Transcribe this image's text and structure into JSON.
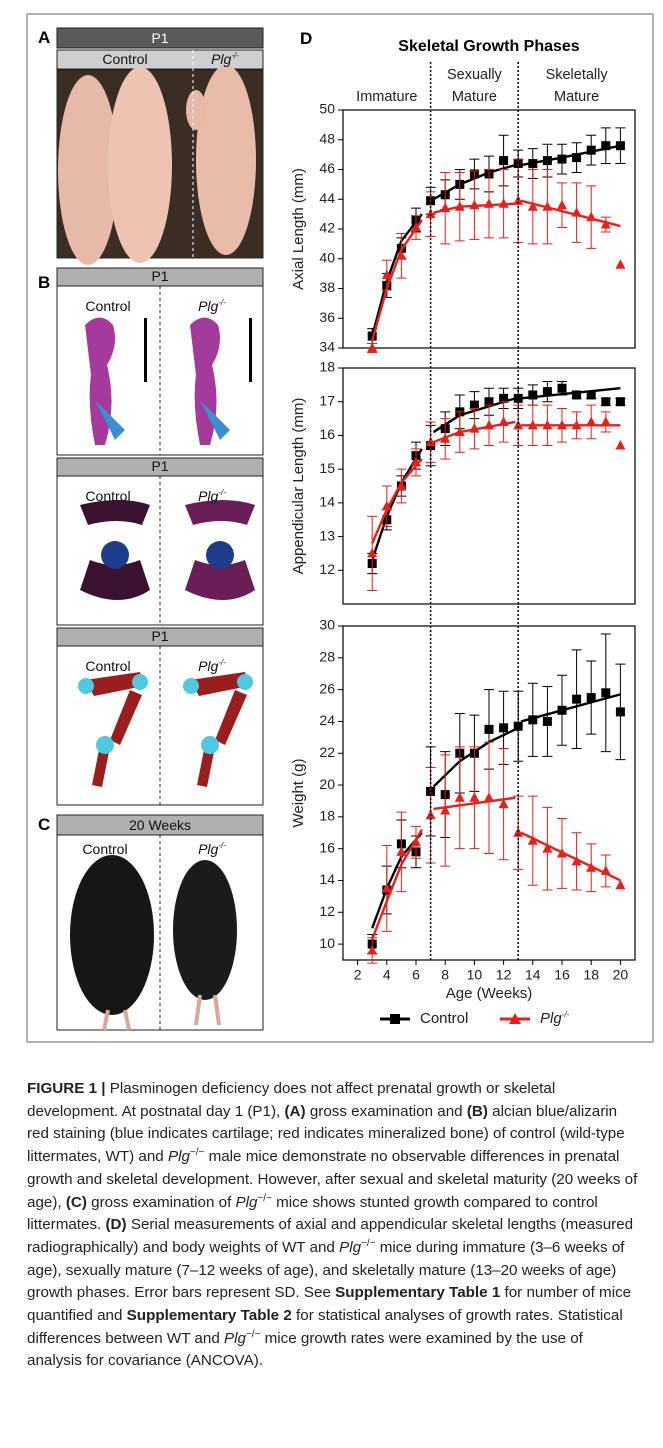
{
  "panels": {
    "A": {
      "label": "A",
      "header": "P1",
      "columns": [
        "Control",
        "Plg"
      ],
      "sup": "-/-"
    },
    "B": {
      "label": "B",
      "boxes": [
        {
          "header": "P1",
          "columns": [
            "Control",
            "Plg"
          ],
          "sup": "-/-"
        },
        {
          "header": "P1",
          "columns": [
            "Control",
            "Plg"
          ],
          "sup": "-/-"
        },
        {
          "header": "P1",
          "columns": [
            "Control",
            "Plg"
          ],
          "sup": "-/-"
        }
      ]
    },
    "C": {
      "label": "C",
      "header": "20 Weeks",
      "columns": [
        "Control",
        "Plg"
      ],
      "sup": "-/-"
    }
  },
  "panel_d": {
    "label": "D",
    "title": "Skeletal Growth Phases",
    "phases": [
      [
        "Immature"
      ],
      [
        "Sexually",
        "Mature"
      ],
      [
        "Skeletally",
        "Mature"
      ]
    ],
    "phase_boundaries": [
      7,
      13
    ]
  },
  "chart_data": [
    {
      "type": "scatter",
      "ylabel": "Axial Length (mm)",
      "xlim": [
        1,
        21
      ],
      "ylim": [
        34,
        50
      ],
      "yticks": [
        34,
        36,
        38,
        40,
        42,
        44,
        46,
        48,
        50
      ],
      "x": [
        3,
        4,
        5,
        6,
        7,
        8,
        9,
        10,
        11,
        12,
        13,
        14,
        15,
        16,
        17,
        18,
        19,
        20
      ],
      "series": [
        {
          "name": "Control",
          "color": "#000000",
          "marker": "square",
          "values": [
            34.8,
            38.2,
            40.7,
            42.6,
            43.9,
            44.3,
            45.0,
            45.7,
            45.7,
            46.6,
            46.4,
            46.4,
            46.6,
            46.7,
            46.8,
            47.3,
            47.6,
            47.6
          ],
          "errors": [
            0.5,
            0.8,
            0.7,
            0.8,
            0.9,
            1.0,
            1.0,
            1.0,
            1.2,
            1.7,
            0.9,
            1.0,
            1.1,
            1.0,
            1.0,
            1.0,
            1.2,
            1.2
          ],
          "fit": [
            {
              "x": [
                3,
                4,
                5,
                6.4
              ],
              "values": [
                34.8,
                38.5,
                41.2,
                43.0
              ]
            },
            {
              "x": [
                7.2,
                9,
                11,
                12.8
              ],
              "values": [
                44.0,
                45.0,
                45.8,
                46.3
              ]
            },
            {
              "x": [
                13.2,
                16,
                20
              ],
              "values": [
                46.3,
                46.8,
                47.6
              ]
            }
          ]
        },
        {
          "name": "Plg",
          "name_sup": "-/-",
          "color": "#e8201c",
          "marker": "triangle",
          "values": [
            34.0,
            38.9,
            40.2,
            42.1,
            43.0,
            43.4,
            43.5,
            43.6,
            43.7,
            43.7,
            43.9,
            43.5,
            43.5,
            43.6,
            43.1,
            42.8,
            42.3,
            39.6
          ],
          "errors": [
            0.3,
            1.0,
            1.5,
            0.8,
            1.5,
            2.4,
            2.3,
            2.3,
            2.3,
            2.3,
            2.8,
            2.5,
            2.5,
            1.5,
            2.0,
            2.1,
            0.5,
            null
          ],
          "fit": [
            {
              "x": [
                3,
                4,
                5,
                6.4
              ],
              "values": [
                34.5,
                38.0,
                40.6,
                42.6
              ]
            },
            {
              "x": [
                7.2,
                9,
                12.8
              ],
              "values": [
                43.1,
                43.5,
                43.7
              ]
            },
            {
              "x": [
                13.2,
                20
              ],
              "values": [
                43.9,
                42.2
              ]
            }
          ]
        }
      ]
    },
    {
      "type": "scatter",
      "ylabel": "Appendicular Length (mm)",
      "xlim": [
        1,
        21
      ],
      "ylim": [
        11,
        18
      ],
      "yticks": [
        12,
        13,
        14,
        15,
        16,
        17,
        18
      ],
      "x": [
        3,
        4,
        5,
        6,
        7,
        8,
        9,
        10,
        11,
        12,
        13,
        14,
        15,
        16,
        17,
        18,
        19,
        20
      ],
      "series": [
        {
          "color": "#000000",
          "marker": "square",
          "values": [
            12.2,
            13.5,
            14.5,
            15.4,
            15.7,
            16.2,
            16.7,
            16.9,
            17.0,
            17.1,
            17.1,
            17.2,
            17.3,
            17.4,
            17.2,
            17.2,
            17.0,
            17.0
          ],
          "errors": [
            0.3,
            0.3,
            0.3,
            0.4,
            0.6,
            0.5,
            0.5,
            0.4,
            0.4,
            0.3,
            0.3,
            0.3,
            0.3,
            0.2,
            0.1,
            0.1,
            0.1,
            0.1
          ],
          "fit": [
            {
              "x": [
                3,
                4,
                5,
                6.4
              ],
              "values": [
                12.3,
                13.6,
                14.6,
                15.6
              ]
            },
            {
              "x": [
                7.2,
                9,
                12.8
              ],
              "values": [
                16.1,
                16.6,
                17.1
              ]
            },
            {
              "x": [
                13.2,
                20
              ],
              "values": [
                17.1,
                17.4
              ]
            }
          ]
        },
        {
          "color": "#e8201c",
          "marker": "triangle",
          "values": [
            12.5,
            13.9,
            14.5,
            15.2,
            15.8,
            15.9,
            16.1,
            16.2,
            16.3,
            16.4,
            16.3,
            16.3,
            16.3,
            16.3,
            16.3,
            16.4,
            16.4,
            15.7
          ],
          "errors": [
            1.1,
            0.6,
            0.5,
            0.4,
            0.6,
            0.6,
            0.6,
            0.6,
            0.6,
            0.6,
            0.6,
            0.6,
            0.6,
            0.5,
            0.4,
            0.5,
            0.3,
            null
          ],
          "fit": [
            {
              "x": [
                3,
                4,
                5,
                6.4
              ],
              "values": [
                12.8,
                13.8,
                14.6,
                15.3
              ]
            },
            {
              "x": [
                7.2,
                9,
                12.8
              ],
              "values": [
                15.8,
                16.1,
                16.4
              ]
            },
            {
              "x": [
                13.2,
                20
              ],
              "values": [
                16.3,
                16.3
              ]
            }
          ]
        }
      ]
    },
    {
      "type": "scatter",
      "ylabel": "Weight (g)",
      "xlabel": "Age (Weeks)",
      "xlim": [
        1,
        21
      ],
      "xticks": [
        2,
        4,
        6,
        8,
        10,
        12,
        14,
        16,
        18,
        20
      ],
      "ylim": [
        9,
        30
      ],
      "yticks": [
        10,
        12,
        14,
        16,
        18,
        20,
        22,
        24,
        26,
        28,
        30
      ],
      "x": [
        3,
        4,
        5,
        6,
        7,
        8,
        9,
        10,
        11,
        12,
        13,
        14,
        15,
        16,
        17,
        18,
        19,
        20
      ],
      "series": [
        {
          "color": "#000000",
          "marker": "square",
          "values": [
            10.0,
            13.4,
            16.3,
            15.8,
            19.6,
            19.4,
            22.0,
            22.0,
            23.5,
            23.6,
            23.7,
            24.1,
            24.0,
            24.7,
            25.4,
            25.5,
            25.8,
            24.6
          ],
          "errors": [
            0.6,
            1.5,
            1.5,
            1.0,
            2.8,
            2.7,
            2.5,
            2.4,
            2.5,
            2.3,
            2.2,
            2.3,
            2.2,
            2.2,
            3.1,
            2.3,
            3.7,
            3.0
          ],
          "fit": [
            {
              "x": [
                3,
                4,
                5,
                6.4
              ],
              "values": [
                11.0,
                13.5,
                15.5,
                17.0
              ]
            },
            {
              "x": [
                7.2,
                9,
                11,
                12.8
              ],
              "values": [
                19.9,
                21.5,
                22.7,
                23.5
              ]
            },
            {
              "x": [
                13.2,
                20
              ],
              "values": [
                24.0,
                25.7
              ]
            }
          ]
        },
        {
          "color": "#e8201c",
          "marker": "triangle",
          "values": [
            9.6,
            13.5,
            15.8,
            16.4,
            18.1,
            18.4,
            19.2,
            19.2,
            19.2,
            18.8,
            17.0,
            16.5,
            16.0,
            15.7,
            15.2,
            14.8,
            14.6,
            13.7
          ],
          "errors": [
            0.8,
            2.7,
            2.5,
            1.0,
            3.0,
            3.5,
            3.2,
            3.2,
            3.5,
            3.5,
            2.3,
            2.8,
            2.6,
            2.2,
            1.8,
            1.5,
            1.0,
            null
          ],
          "fit": [
            {
              "x": [
                3,
                4,
                5,
                6.4
              ],
              "values": [
                10.3,
                12.7,
                15.0,
                17.2
              ]
            },
            {
              "x": [
                7.2,
                12.8
              ],
              "values": [
                18.5,
                19.2
              ]
            },
            {
              "x": [
                13.2,
                20
              ],
              "values": [
                17.0,
                14.0
              ]
            }
          ]
        }
      ]
    }
  ],
  "caption": [
    {
      "text": "FIGURE 1 | ",
      "style": "b"
    },
    {
      "text": "Plasminogen deficiency does not affect prenatal growth or skeletal development. At postnatal day 1 (P1), "
    },
    {
      "text": "(A)",
      "style": "b"
    },
    {
      "text": " gross examination and "
    },
    {
      "text": "(B)",
      "style": "b"
    },
    {
      "text": " alcian blue/alizarin red staining (blue indicates cartilage; red indicates mineralized bone) of control (wild-type littermates, WT) and "
    },
    {
      "text": "Plg",
      "style": "i"
    },
    {
      "text": "−/−",
      "style": "s"
    },
    {
      "text": " male mice demonstrate no observable differences in prenatal growth and skeletal development. However, after sexual and skeletal maturity (20 weeks of age), "
    },
    {
      "text": "(C)",
      "style": "b"
    },
    {
      "text": " gross examination of "
    },
    {
      "text": "Plg",
      "style": "i"
    },
    {
      "text": "−/−",
      "style": "s"
    },
    {
      "text": " mice shows stunted growth compared to control littermates. "
    },
    {
      "text": "(D)",
      "style": "b"
    },
    {
      "text": " Serial measurements of axial and appendicular skeletal lengths (measured radiographically) and body weights of WT and "
    },
    {
      "text": "Plg",
      "style": "i"
    },
    {
      "text": "−/−",
      "style": "s"
    },
    {
      "text": " mice during immature (3–6 weeks of age), sexually mature (7–12 weeks of age), and skeletally mature (13–20 weeks of age) growth phases. Error bars represent SD. See "
    },
    {
      "text": "Supplementary Table 1",
      "style": "b"
    },
    {
      "text": " for number of mice quantified and "
    },
    {
      "text": "Supplementary Table 2",
      "style": "b"
    },
    {
      "text": " for statistical analyses of growth rates. Statistical differences between WT and "
    },
    {
      "text": "Plg",
      "style": "i"
    },
    {
      "text": "−/−",
      "style": "s"
    },
    {
      "text": " mice growth rates were examined by the use of analysis for covariance (ANCOVA)."
    }
  ]
}
